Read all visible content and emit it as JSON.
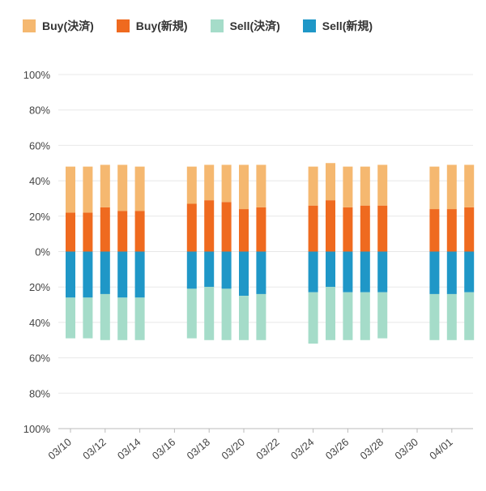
{
  "chart_data": {
    "type": "bar",
    "stacked": true,
    "legend": {
      "placement": "top-left"
    },
    "series": [
      {
        "name": "Buy(決済)",
        "color": "#f5b870",
        "side": "up"
      },
      {
        "name": "Buy(新規)",
        "color": "#ef6a1f",
        "side": "up"
      },
      {
        "name": "Sell(決済)",
        "color": "#a5dcc9",
        "side": "down"
      },
      {
        "name": "Sell(新規)",
        "color": "#1f97c7",
        "side": "down"
      }
    ],
    "y_ticks": [
      "100%",
      "80%",
      "60%",
      "40%",
      "20%",
      "0%",
      "20%",
      "40%",
      "60%",
      "80%",
      "100%"
    ],
    "ylim": [
      -100,
      100
    ],
    "grid": true,
    "x_ticks": [
      "03/10",
      "03/12",
      "03/14",
      "03/16",
      "03/18",
      "03/20",
      "03/22",
      "03/24",
      "03/26",
      "03/28",
      "03/30",
      "04/01"
    ],
    "bars": [
      {
        "date": "03/10",
        "buy_new": 22,
        "buy_settle": 26,
        "sell_new": 26,
        "sell_settle": 23
      },
      {
        "date": "03/11",
        "buy_new": 22,
        "buy_settle": 26,
        "sell_new": 26,
        "sell_settle": 23
      },
      {
        "date": "03/12",
        "buy_new": 25,
        "buy_settle": 24,
        "sell_new": 24,
        "sell_settle": 26
      },
      {
        "date": "03/13",
        "buy_new": 23,
        "buy_settle": 26,
        "sell_new": 26,
        "sell_settle": 24
      },
      {
        "date": "03/14",
        "buy_new": 23,
        "buy_settle": 25,
        "sell_new": 26,
        "sell_settle": 24
      },
      {
        "date": "03/17",
        "buy_new": 27,
        "buy_settle": 21,
        "sell_new": 21,
        "sell_settle": 28
      },
      {
        "date": "03/18",
        "buy_new": 29,
        "buy_settle": 20,
        "sell_new": 20,
        "sell_settle": 30
      },
      {
        "date": "03/19",
        "buy_new": 28,
        "buy_settle": 21,
        "sell_new": 21,
        "sell_settle": 29
      },
      {
        "date": "03/20",
        "buy_new": 24,
        "buy_settle": 25,
        "sell_new": 25,
        "sell_settle": 25
      },
      {
        "date": "03/21",
        "buy_new": 25,
        "buy_settle": 24,
        "sell_new": 24,
        "sell_settle": 26
      },
      {
        "date": "03/24",
        "buy_new": 26,
        "buy_settle": 22,
        "sell_new": 23,
        "sell_settle": 29
      },
      {
        "date": "03/25",
        "buy_new": 29,
        "buy_settle": 21,
        "sell_new": 20,
        "sell_settle": 30
      },
      {
        "date": "03/26",
        "buy_new": 25,
        "buy_settle": 23,
        "sell_new": 23,
        "sell_settle": 27
      },
      {
        "date": "03/27",
        "buy_new": 26,
        "buy_settle": 22,
        "sell_new": 23,
        "sell_settle": 27
      },
      {
        "date": "03/28",
        "buy_new": 26,
        "buy_settle": 23,
        "sell_new": 23,
        "sell_settle": 26
      },
      {
        "date": "03/31",
        "buy_new": 24,
        "buy_settle": 24,
        "sell_new": 24,
        "sell_settle": 26
      },
      {
        "date": "04/01",
        "buy_new": 24,
        "buy_settle": 25,
        "sell_new": 24,
        "sell_settle": 26
      },
      {
        "date": "04/02",
        "buy_new": 25,
        "buy_settle": 24,
        "sell_new": 23,
        "sell_settle": 27
      }
    ]
  }
}
